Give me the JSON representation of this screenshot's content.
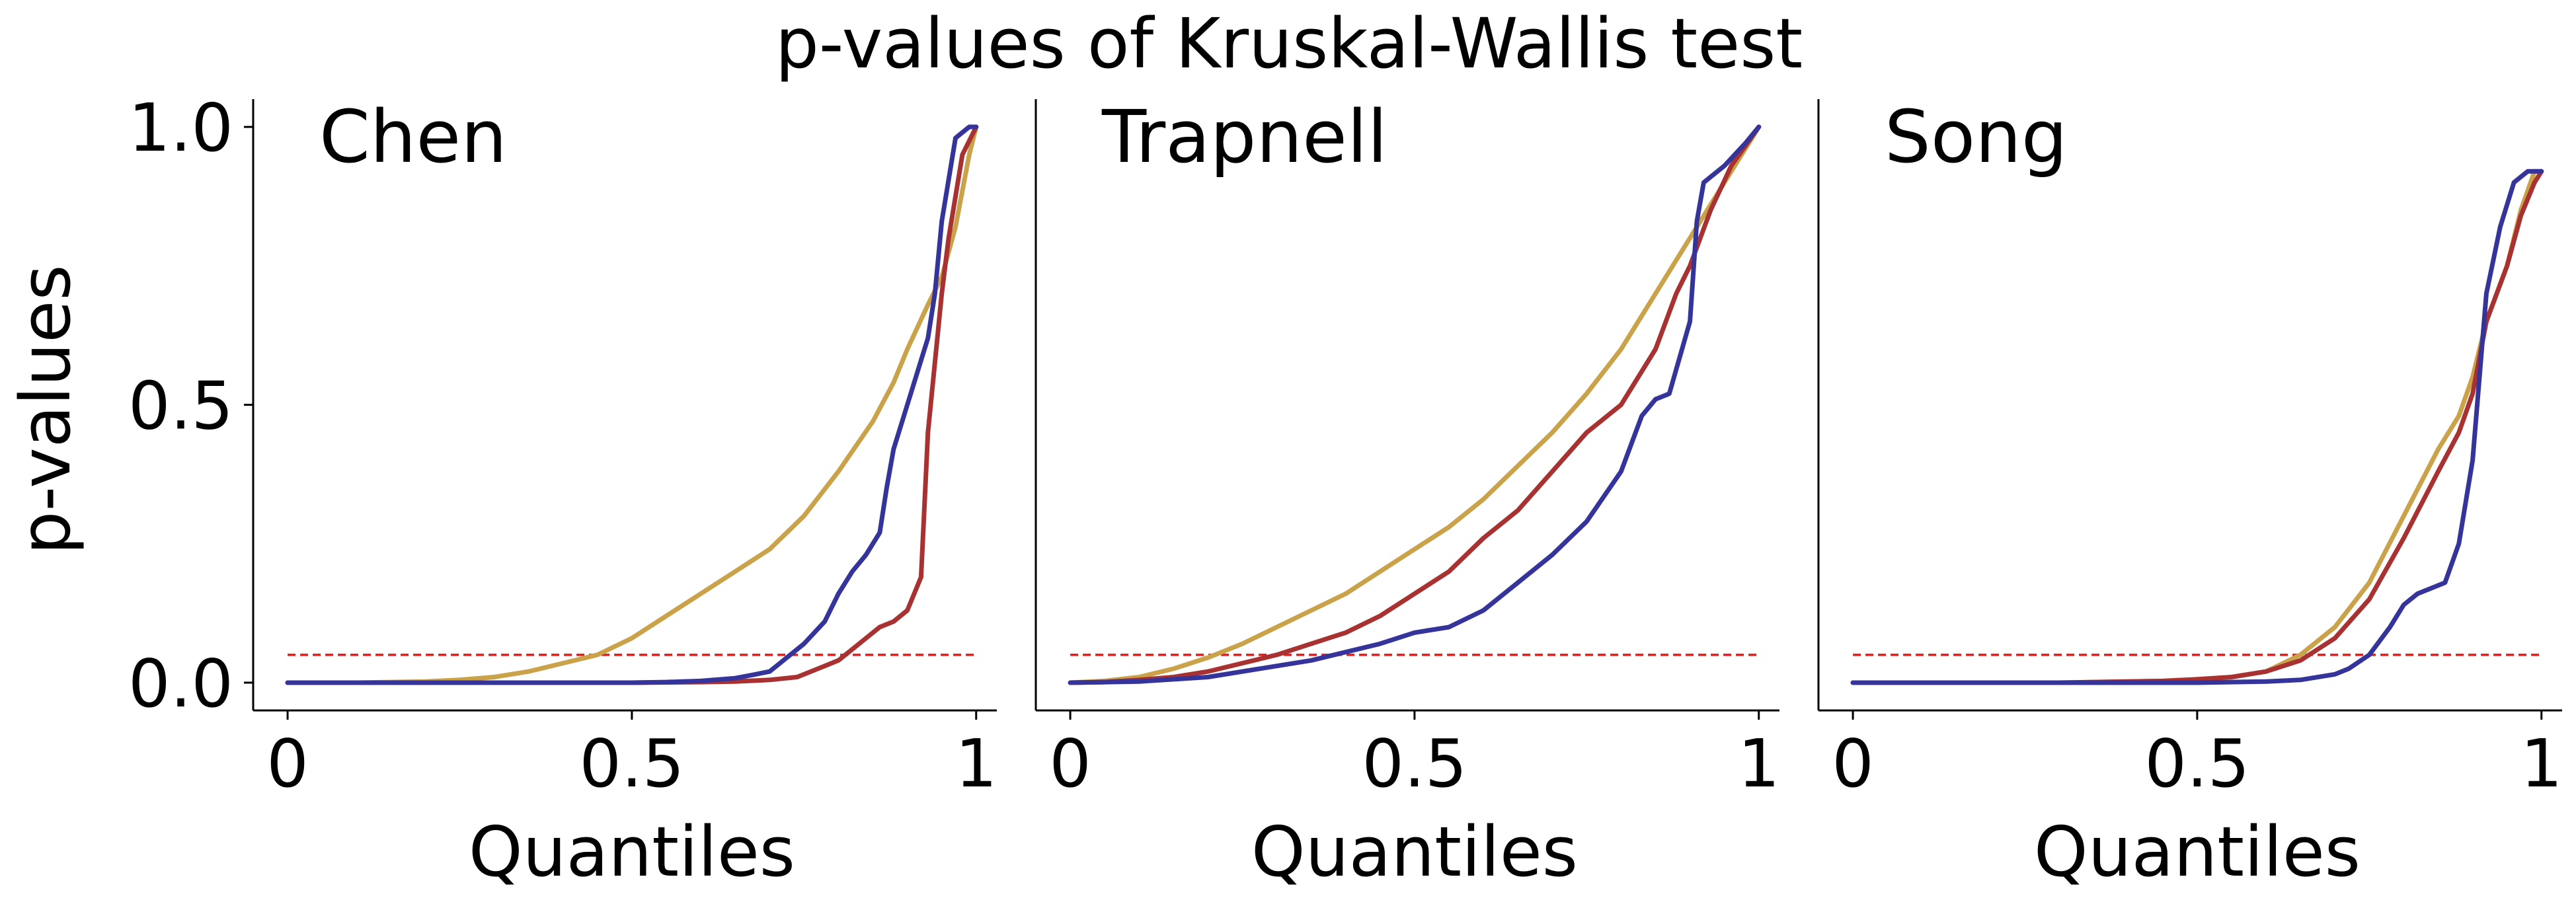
{
  "figure_title": "p-values of Kruskal-Wallis test",
  "colors": {
    "gold": "#c9a24a",
    "red": "#a83232",
    "blue": "#34349a",
    "threshold": "#e01b1b",
    "axis": "#000000"
  },
  "chart_data": [
    {
      "type": "line",
      "title": "Chen",
      "xlabel": "Quantiles",
      "ylabel": "p-values",
      "xlim": [
        -0.05,
        1.03
      ],
      "ylim": [
        -0.05,
        1.05
      ],
      "xticks": [
        0,
        0.5,
        1
      ],
      "xtick_labels": [
        "0",
        "0.5",
        "1"
      ],
      "yticks": [
        0,
        0.5,
        1
      ],
      "ytick_labels": [
        "0.0",
        "0.5",
        "1.0"
      ],
      "threshold": 0.05,
      "grid": false,
      "series": [
        {
          "color": "gold",
          "x": [
            0,
            0.1,
            0.2,
            0.25,
            0.3,
            0.35,
            0.4,
            0.45,
            0.5,
            0.55,
            0.6,
            0.65,
            0.7,
            0.75,
            0.8,
            0.85,
            0.88,
            0.9,
            0.93,
            0.95,
            0.97,
            0.99,
            1.0
          ],
          "y": [
            0,
            0,
            0.002,
            0.005,
            0.01,
            0.02,
            0.035,
            0.05,
            0.08,
            0.12,
            0.16,
            0.2,
            0.24,
            0.3,
            0.38,
            0.47,
            0.54,
            0.6,
            0.68,
            0.73,
            0.82,
            0.95,
            1.0
          ]
        },
        {
          "color": "red",
          "x": [
            0,
            0.3,
            0.5,
            0.6,
            0.65,
            0.7,
            0.74,
            0.76,
            0.78,
            0.8,
            0.82,
            0.84,
            0.86,
            0.88,
            0.9,
            0.92,
            0.93,
            0.95,
            0.96,
            0.98,
            1.0
          ],
          "y": [
            0,
            0,
            0,
            0.001,
            0.002,
            0.005,
            0.01,
            0.02,
            0.03,
            0.04,
            0.06,
            0.08,
            0.1,
            0.11,
            0.13,
            0.19,
            0.45,
            0.7,
            0.8,
            0.95,
            1.0
          ]
        },
        {
          "color": "blue",
          "x": [
            0,
            0.3,
            0.5,
            0.55,
            0.6,
            0.65,
            0.68,
            0.7,
            0.72,
            0.75,
            0.78,
            0.8,
            0.82,
            0.84,
            0.86,
            0.87,
            0.88,
            0.9,
            0.92,
            0.93,
            0.94,
            0.95,
            0.97,
            0.99,
            1.0
          ],
          "y": [
            0,
            0,
            0,
            0.001,
            0.003,
            0.008,
            0.015,
            0.02,
            0.04,
            0.07,
            0.11,
            0.16,
            0.2,
            0.23,
            0.27,
            0.35,
            0.42,
            0.5,
            0.58,
            0.62,
            0.7,
            0.83,
            0.98,
            1.0,
            1.0
          ]
        }
      ]
    },
    {
      "type": "line",
      "title": "Trapnell",
      "xlabel": "Quantiles",
      "ylabel": "",
      "xlim": [
        -0.05,
        1.03
      ],
      "ylim": [
        -0.05,
        1.05
      ],
      "xticks": [
        0,
        0.5,
        1
      ],
      "xtick_labels": [
        "0",
        "0.5",
        "1"
      ],
      "yticks": [],
      "ytick_labels": [],
      "threshold": 0.05,
      "grid": false,
      "series": [
        {
          "color": "gold",
          "x": [
            0,
            0.05,
            0.1,
            0.15,
            0.2,
            0.25,
            0.3,
            0.35,
            0.4,
            0.45,
            0.5,
            0.55,
            0.6,
            0.65,
            0.7,
            0.75,
            0.8,
            0.85,
            0.9,
            0.95,
            1.0
          ],
          "y": [
            0,
            0.003,
            0.01,
            0.025,
            0.045,
            0.07,
            0.1,
            0.13,
            0.16,
            0.2,
            0.24,
            0.28,
            0.33,
            0.39,
            0.45,
            0.52,
            0.6,
            0.7,
            0.8,
            0.9,
            1.0
          ]
        },
        {
          "color": "red",
          "x": [
            0,
            0.05,
            0.1,
            0.15,
            0.2,
            0.25,
            0.3,
            0.35,
            0.4,
            0.45,
            0.5,
            0.55,
            0.6,
            0.65,
            0.7,
            0.75,
            0.8,
            0.85,
            0.88,
            0.9,
            0.93,
            0.96,
            1.0
          ],
          "y": [
            0,
            0.001,
            0.005,
            0.01,
            0.02,
            0.035,
            0.05,
            0.07,
            0.09,
            0.12,
            0.16,
            0.2,
            0.26,
            0.31,
            0.38,
            0.45,
            0.5,
            0.6,
            0.7,
            0.75,
            0.85,
            0.93,
            1.0
          ]
        },
        {
          "color": "blue",
          "x": [
            0,
            0.1,
            0.2,
            0.3,
            0.35,
            0.4,
            0.45,
            0.5,
            0.55,
            0.6,
            0.65,
            0.7,
            0.75,
            0.8,
            0.83,
            0.85,
            0.87,
            0.9,
            0.91,
            0.92,
            0.95,
            0.98,
            1.0
          ],
          "y": [
            0,
            0.002,
            0.01,
            0.03,
            0.04,
            0.055,
            0.07,
            0.09,
            0.1,
            0.13,
            0.18,
            0.23,
            0.29,
            0.38,
            0.48,
            0.51,
            0.52,
            0.65,
            0.83,
            0.9,
            0.93,
            0.97,
            1.0
          ]
        }
      ]
    },
    {
      "type": "line",
      "title": "Song",
      "xlabel": "Quantiles",
      "ylabel": "",
      "xlim": [
        -0.05,
        1.03
      ],
      "ylim": [
        -0.05,
        1.05
      ],
      "xticks": [
        0,
        0.5,
        1
      ],
      "xtick_labels": [
        "0",
        "0.5",
        "1"
      ],
      "yticks": [],
      "ytick_labels": [],
      "threshold": 0.05,
      "grid": false,
      "series": [
        {
          "color": "gold",
          "x": [
            0,
            0.3,
            0.45,
            0.5,
            0.55,
            0.6,
            0.65,
            0.7,
            0.75,
            0.8,
            0.85,
            0.88,
            0.9,
            0.92,
            0.95,
            0.97,
            0.99,
            1.0
          ],
          "y": [
            0,
            0,
            0.003,
            0.006,
            0.01,
            0.02,
            0.05,
            0.1,
            0.18,
            0.3,
            0.42,
            0.48,
            0.55,
            0.65,
            0.75,
            0.85,
            0.92,
            0.92
          ]
        },
        {
          "color": "red",
          "x": [
            0,
            0.3,
            0.45,
            0.5,
            0.55,
            0.6,
            0.65,
            0.7,
            0.75,
            0.8,
            0.85,
            0.88,
            0.9,
            0.92,
            0.95,
            0.97,
            0.99,
            1.0
          ],
          "y": [
            0,
            0,
            0.003,
            0.006,
            0.01,
            0.02,
            0.04,
            0.08,
            0.15,
            0.26,
            0.38,
            0.45,
            0.52,
            0.65,
            0.75,
            0.84,
            0.9,
            0.92
          ]
        },
        {
          "color": "blue",
          "x": [
            0,
            0.3,
            0.5,
            0.6,
            0.65,
            0.7,
            0.72,
            0.75,
            0.78,
            0.8,
            0.82,
            0.84,
            0.86,
            0.88,
            0.9,
            0.92,
            0.94,
            0.96,
            0.98,
            1.0
          ],
          "y": [
            0,
            0,
            0,
            0.002,
            0.005,
            0.015,
            0.025,
            0.05,
            0.1,
            0.14,
            0.16,
            0.17,
            0.18,
            0.25,
            0.4,
            0.7,
            0.82,
            0.9,
            0.92,
            0.92
          ]
        }
      ]
    }
  ]
}
